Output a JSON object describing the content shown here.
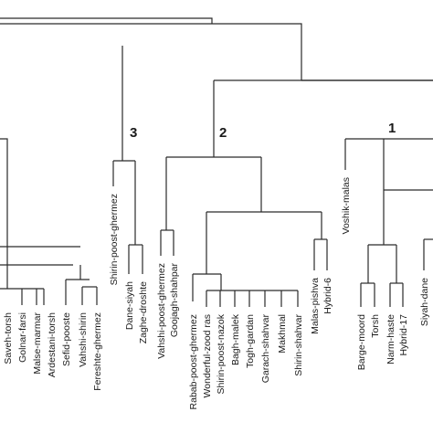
{
  "clusters": [
    {
      "id": "1",
      "label": "1"
    },
    {
      "id": "2",
      "label": "2"
    },
    {
      "id": "3",
      "label": "3"
    }
  ],
  "leaves": [
    {
      "id": "saveh",
      "label": "Saveh-torsh"
    },
    {
      "id": "golnar",
      "label": "Golnar-farsi"
    },
    {
      "id": "malse",
      "label": "Malse-marmar"
    },
    {
      "id": "ardestani",
      "label": "Ardestani-torsh"
    },
    {
      "id": "sefid",
      "label": "Sefid-pooste"
    },
    {
      "id": "vahshishirin",
      "label": "Vahshi-shirin"
    },
    {
      "id": "fereshte",
      "label": "Fereshte-ghermez"
    },
    {
      "id": "shirinpg",
      "label": "Shirin-poost-ghermez"
    },
    {
      "id": "danesiyah",
      "label": "Dane-siyah"
    },
    {
      "id": "zaghe",
      "label": "Zaghe-droshte"
    },
    {
      "id": "vahshipg",
      "label": "Vahshi-poost-ghermez"
    },
    {
      "id": "goojagh",
      "label": "Goojagh-shahpar"
    },
    {
      "id": "rabab",
      "label": "Rabab-poost-ghermez"
    },
    {
      "id": "wonderful",
      "label": "Wonderful-zood ras"
    },
    {
      "id": "shirinpn",
      "label": "Shirin-poost-nazok"
    },
    {
      "id": "baghmalek",
      "label": "Bagh-malek"
    },
    {
      "id": "togh",
      "label": "Togh-gardan"
    },
    {
      "id": "garach",
      "label": "Garach-shahvar"
    },
    {
      "id": "makhmal",
      "label": "Makhmal"
    },
    {
      "id": "shirinshahvar",
      "label": "Shirin-shahvar"
    },
    {
      "id": "malaspishva",
      "label": "Malas-pishva"
    },
    {
      "id": "hybrid6",
      "label": "Hybrid-6"
    },
    {
      "id": "voshik",
      "label": "Voshik-malas"
    },
    {
      "id": "barge",
      "label": "Barge-moord"
    },
    {
      "id": "torsh",
      "label": "Torsh"
    },
    {
      "id": "narm",
      "label": "Narm-haste"
    },
    {
      "id": "hybrid17",
      "label": "Hybrid-17"
    },
    {
      "id": "siyahdane",
      "label": "Siyah-dane"
    }
  ]
}
